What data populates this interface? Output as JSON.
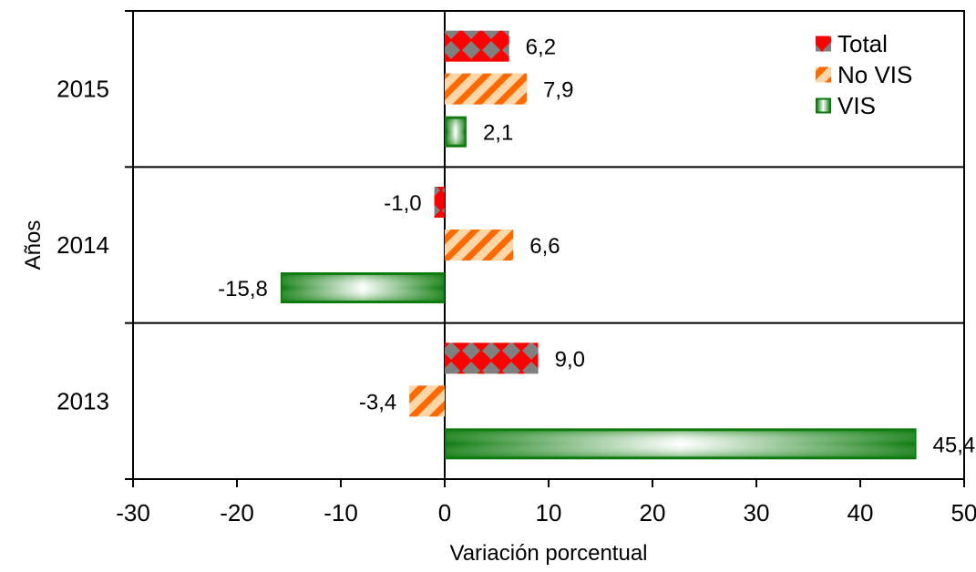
{
  "chart_data": {
    "type": "bar",
    "orientation": "horizontal",
    "title": "",
    "xlabel": "Variación porcentual",
    "ylabel": "Años",
    "xlim": [
      -30,
      50
    ],
    "x_ticks": [
      -30,
      -20,
      -10,
      0,
      10,
      20,
      30,
      40,
      50
    ],
    "x_tick_labels": [
      "-30",
      "-20",
      "-10",
      "0",
      "10",
      "20",
      "30",
      "40",
      "50"
    ],
    "categories": [
      "2015",
      "2014",
      "2013"
    ],
    "series": [
      {
        "name": "Total",
        "values": [
          6.2,
          -1.0,
          9.0
        ],
        "labels": [
          "6,2",
          "-1,0",
          "9,0"
        ],
        "color": "#ff0000",
        "pattern": "checker"
      },
      {
        "name": "No VIS",
        "values": [
          7.9,
          6.6,
          -3.4
        ],
        "labels": [
          "7,9",
          "6,6",
          "-3,4"
        ],
        "color": "#ff6600",
        "pattern": "diagonal-stripes"
      },
      {
        "name": "VIS",
        "values": [
          2.1,
          -15.8,
          45.4
        ],
        "labels": [
          "2,1",
          "-15,8",
          "45,4"
        ],
        "color": "#007700",
        "pattern": "gradient"
      }
    ],
    "grid": false,
    "legend_position": "top-right"
  }
}
